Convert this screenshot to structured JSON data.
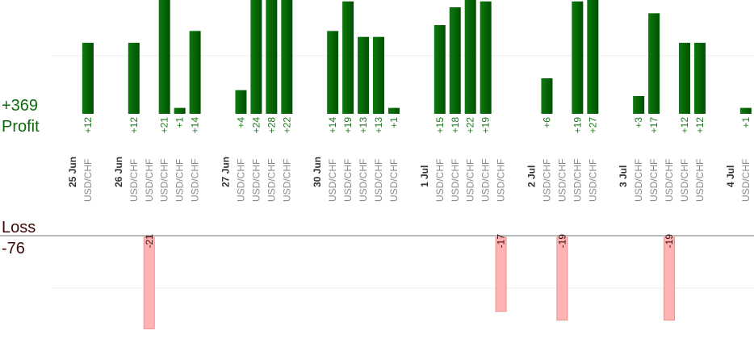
{
  "profit": {
    "label": "Profit",
    "total": {
      "value": 369,
      "label": "+369"
    }
  },
  "loss": {
    "label": "Loss",
    "total": {
      "value": -76,
      "label": "-76"
    }
  },
  "columns": [
    {
      "date": "25 Jun"
    },
    {
      "pair": "USD/CHF",
      "value": 12,
      "label": "+12"
    },
    {
      "date": "26 Jun"
    },
    {
      "pair": "USD/CHF",
      "value": 12,
      "label": "+12"
    },
    {
      "pair": "USD/CHF",
      "value": -21,
      "label": "-21"
    },
    {
      "pair": "USD/CHF",
      "value": 21,
      "label": "+21"
    },
    {
      "pair": "USD/CHF",
      "value": 1,
      "label": "+1"
    },
    {
      "pair": "USD/CHF",
      "value": 14,
      "label": "+14"
    },
    {
      "date": "27 Jun"
    },
    {
      "pair": "USD/CHF",
      "value": 4,
      "label": "+4"
    },
    {
      "pair": "USD/CHF",
      "value": 24,
      "label": "+24"
    },
    {
      "pair": "USD/CHF",
      "value": 28,
      "label": "+28"
    },
    {
      "pair": "USD/CHF",
      "value": 22,
      "label": "+22"
    },
    {
      "date": "30 Jun"
    },
    {
      "pair": "USD/CHF",
      "value": 14,
      "label": "+14"
    },
    {
      "pair": "USD/CHF",
      "value": 19,
      "label": "+19"
    },
    {
      "pair": "USD/CHF",
      "value": 13,
      "label": "+13"
    },
    {
      "pair": "USD/CHF",
      "value": 13,
      "label": "+13"
    },
    {
      "pair": "USD/CHF",
      "value": 1,
      "label": "+1"
    },
    {
      "date": "1 Jul"
    },
    {
      "pair": "USD/CHF",
      "value": 15,
      "label": "+15"
    },
    {
      "pair": "USD/CHF",
      "value": 18,
      "label": "+18"
    },
    {
      "pair": "USD/CHF",
      "value": 22,
      "label": "+22"
    },
    {
      "pair": "USD/CHF",
      "value": 19,
      "label": "+19"
    },
    {
      "pair": "USD/CHF",
      "value": -17,
      "label": "-17"
    },
    {
      "date": "2 Jul"
    },
    {
      "pair": "USD/CHF",
      "value": 6,
      "label": "+6"
    },
    {
      "pair": "USD/CHF",
      "value": -19,
      "label": "-19"
    },
    {
      "pair": "USD/CHF",
      "value": 19,
      "label": "+19"
    },
    {
      "pair": "USD/CHF",
      "value": 27,
      "label": "+27"
    },
    {
      "date": "3 Jul"
    },
    {
      "pair": "USD/CHF",
      "value": 3,
      "label": "+3"
    },
    {
      "pair": "USD/CHF",
      "value": 17,
      "label": "+17"
    },
    {
      "pair": "USD/CHF",
      "value": -19,
      "label": "-19"
    },
    {
      "pair": "USD/CHF",
      "value": 12,
      "label": "+12"
    },
    {
      "pair": "USD/CHF",
      "value": 12,
      "label": "+12"
    },
    {
      "date": "4 Jul"
    },
    {
      "pair": "USD/CHF",
      "value": 1,
      "label": "+1"
    }
  ]
}
